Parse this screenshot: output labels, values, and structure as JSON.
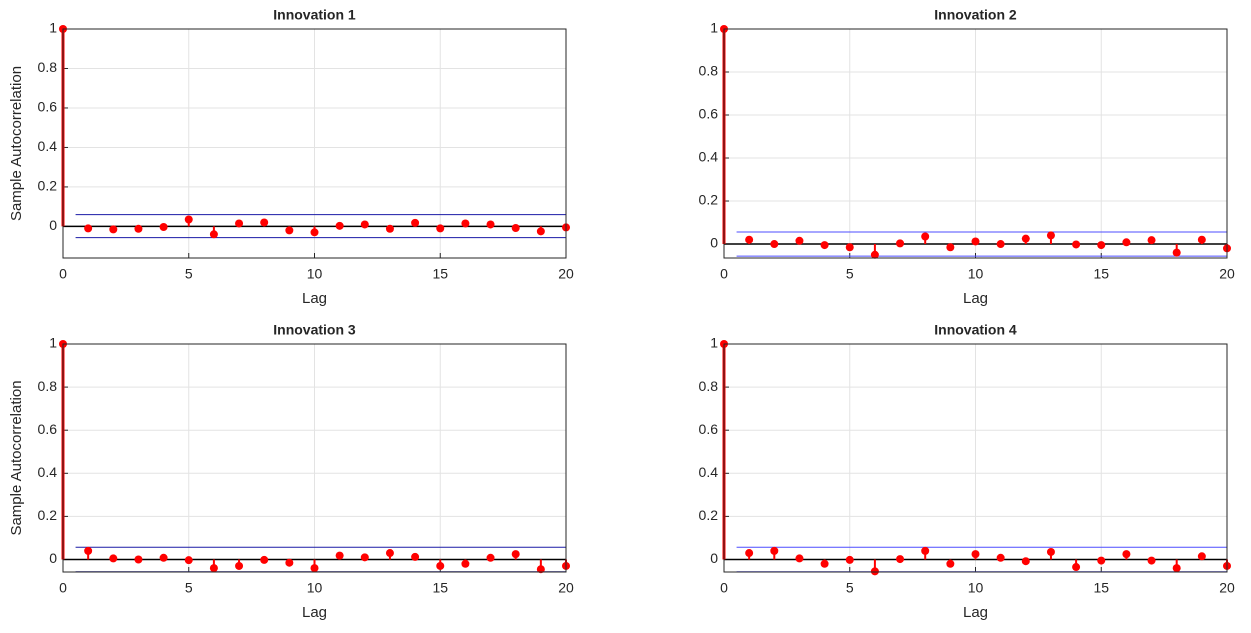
{
  "chart_data": [
    {
      "type": "stem",
      "title": "Innovation  1",
      "xlabel": "Lag",
      "ylabel": "Sample Autocorrelation",
      "x": [
        0,
        1,
        2,
        3,
        4,
        5,
        6,
        7,
        8,
        9,
        10,
        11,
        12,
        13,
        14,
        15,
        16,
        17,
        18,
        19,
        20
      ],
      "series": [
        {
          "color": "#ff0000",
          "values": [
            1,
            -0.01,
            -0.015,
            -0.012,
            -0.003,
            0.035,
            -0.04,
            0.015,
            0.02,
            -0.02,
            -0.03,
            0.003,
            0.01,
            -0.012,
            0.018,
            -0.01,
            0.015,
            0.01,
            -0.008,
            -0.025,
            -0.005
          ]
        }
      ],
      "bounds": [
        0.06,
        -0.057
      ],
      "bounds_color": "#1a1aa6",
      "xlim": [
        0,
        20
      ],
      "xticks": [
        0,
        5,
        10,
        15,
        20
      ],
      "ylim": [
        -0.16,
        1
      ],
      "yticks": [
        0,
        0.2,
        0.4,
        0.6,
        0.8,
        1
      ],
      "grid": true
    },
    {
      "type": "stem",
      "title": "Innovation  2",
      "xlabel": "Lag",
      "x": [
        0,
        1,
        2,
        3,
        4,
        5,
        6,
        7,
        8,
        9,
        10,
        11,
        12,
        13,
        14,
        15,
        16,
        17,
        18,
        19,
        20
      ],
      "series": [
        {
          "color": "#ff0000",
          "values": [
            1,
            0.02,
            0,
            0.015,
            -0.005,
            -0.015,
            -0.05,
            0.003,
            0.035,
            -0.015,
            0.012,
            0,
            0.025,
            0.04,
            -0.002,
            -0.005,
            0.008,
            0.018,
            -0.04,
            0.02,
            -0.02
          ]
        }
      ],
      "bounds": [
        0.056,
        -0.056
      ],
      "bounds_color": "#4d4dff",
      "xlim": [
        0,
        20
      ],
      "xticks": [
        0,
        5,
        10,
        15,
        20
      ],
      "ylim": [
        -0.065,
        1
      ],
      "yticks": [
        0,
        0.2,
        0.4,
        0.6,
        0.8,
        1
      ],
      "grid": true
    },
    {
      "type": "stem",
      "title": "Innovation  3",
      "xlabel": "Lag",
      "ylabel": "Sample Autocorrelation",
      "x": [
        0,
        1,
        2,
        3,
        4,
        5,
        6,
        7,
        8,
        9,
        10,
        11,
        12,
        13,
        14,
        15,
        16,
        17,
        18,
        19,
        20
      ],
      "series": [
        {
          "color": "#ff0000",
          "values": [
            1,
            0.04,
            0.005,
            0,
            0.008,
            -0.003,
            -0.04,
            -0.03,
            -0.002,
            -0.015,
            -0.04,
            0.018,
            0.01,
            0.03,
            0.012,
            -0.03,
            -0.02,
            0.008,
            0.025,
            -0.045,
            -0.03
          ]
        }
      ],
      "bounds": [
        0.057,
        -0.057
      ],
      "bounds_color": "#1a1aa6",
      "xlim": [
        0,
        20
      ],
      "xticks": [
        0,
        5,
        10,
        15,
        20
      ],
      "ylim": [
        -0.058,
        1
      ],
      "yticks": [
        0,
        0.2,
        0.4,
        0.6,
        0.8,
        1
      ],
      "grid": true
    },
    {
      "type": "stem",
      "title": "Innovation  4",
      "xlabel": "Lag",
      "x": [
        0,
        1,
        2,
        3,
        4,
        5,
        6,
        7,
        8,
        9,
        10,
        11,
        12,
        13,
        14,
        15,
        16,
        17,
        18,
        19,
        20
      ],
      "series": [
        {
          "color": "#ff0000",
          "values": [
            1,
            0.03,
            0.04,
            0.005,
            -0.02,
            -0.002,
            -0.055,
            0.002,
            0.04,
            -0.02,
            0.025,
            0.008,
            -0.008,
            0.035,
            -0.035,
            -0.005,
            0.025,
            -0.005,
            -0.04,
            0.015,
            -0.03
          ]
        }
      ],
      "bounds": [
        0.057,
        -0.057
      ],
      "bounds_color": "#4d4dff",
      "xlim": [
        0,
        20
      ],
      "xticks": [
        0,
        5,
        10,
        15,
        20
      ],
      "ylim": [
        -0.058,
        1
      ],
      "yticks": [
        0,
        0.2,
        0.4,
        0.6,
        0.8,
        1
      ],
      "grid": true
    }
  ]
}
